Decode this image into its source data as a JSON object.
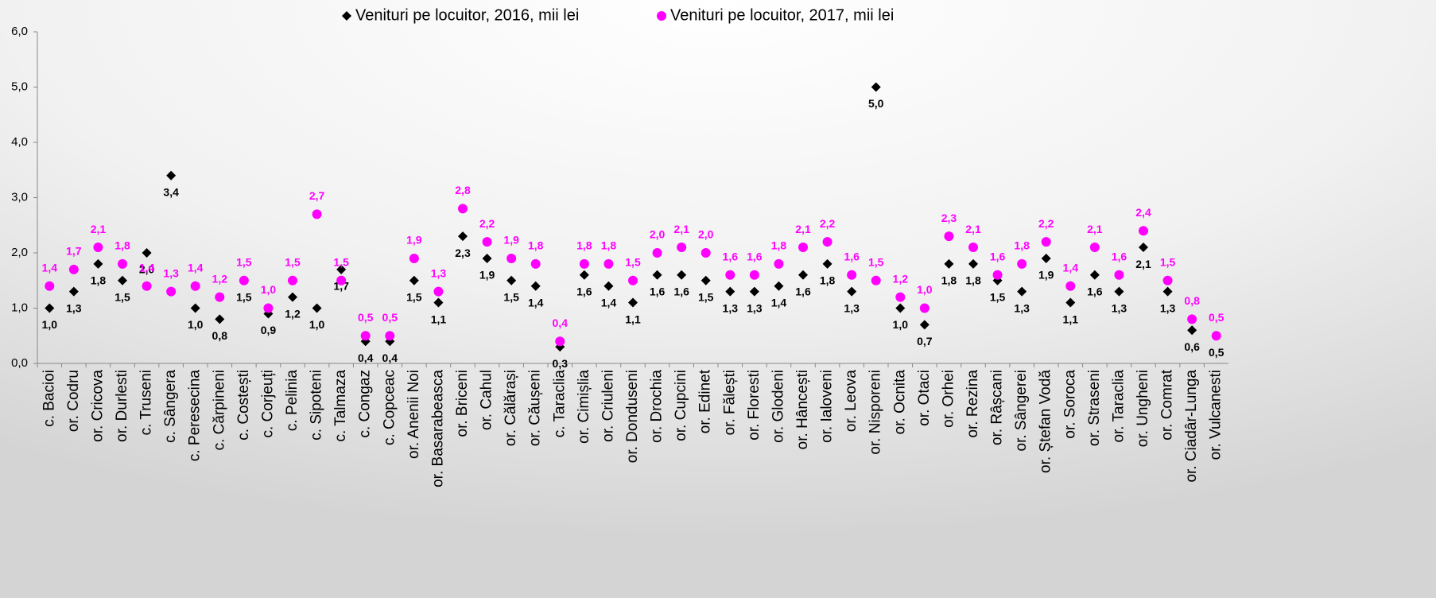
{
  "chart_data": {
    "type": "scatter",
    "categories": [
      "c. Bacioi",
      "or. Codru",
      "or. Cricova",
      "or. Durlesti",
      "c. Truseni",
      "c. Sângera",
      "c. Peresecina",
      "c. Cărpineni",
      "c. Costești",
      "c. Corjeuți",
      "c. Pelinia",
      "c. Sipoteni",
      "c. Talmaza",
      "c. Congaz",
      "c. Copceac",
      "or. Anenii Noi",
      "or. Basarabeasca",
      "or. Briceni",
      "or. Cahul",
      "or. Călărași",
      "or. Căușeni",
      "c. Taraclia",
      "or. Cimișlia",
      "or. Criuleni",
      "or. Donduseni",
      "or. Drochia",
      "or. Cupcini",
      "or. Edinet",
      "or. Fălești",
      "or. Floresti",
      "or. Glodeni",
      "or. Hâncești",
      "or. Ialoveni",
      "or. Leova",
      "or. Nisporeni",
      "or. Ocnita",
      "or. Otaci",
      "or. Orhei",
      "or. Rezina",
      "or. Râșcani",
      "or. Sângerei",
      "or. Ștefan Vodă",
      "or. Soroca",
      "or. Straseni",
      "or. Taraclia",
      "or. Ungheni",
      "or. Comrat",
      "or. Ciadâr-Lunga",
      "or. Vulcanesti"
    ],
    "series": [
      {
        "name": "Venituri pe locuitor, 2016, mii lei",
        "color": "#000000",
        "marker": "diamond",
        "values": [
          1.0,
          1.3,
          1.8,
          1.5,
          2.0,
          3.4,
          1.0,
          0.8,
          1.5,
          0.9,
          1.2,
          1.0,
          1.7,
          0.4,
          0.4,
          1.5,
          1.1,
          2.3,
          1.9,
          1.5,
          1.4,
          0.3,
          1.6,
          1.4,
          1.1,
          1.6,
          1.6,
          1.5,
          1.3,
          1.3,
          1.4,
          1.6,
          1.8,
          1.3,
          5.0,
          1.0,
          0.7,
          1.8,
          1.8,
          1.5,
          1.3,
          1.9,
          1.1,
          1.6,
          1.3,
          2.1,
          1.3,
          0.6,
          0.5
        ],
        "value_labels": [
          "1,0",
          "1,3",
          "1,8",
          "1,5",
          "2,0",
          "3,4",
          "1,0",
          "0,8",
          "1,5",
          "0,9",
          "1,2",
          "1,0",
          "1,7",
          "0,4",
          "0,4",
          "1,5",
          "1,1",
          "2,3",
          "1,9",
          "1,5",
          "1,4",
          "0,3",
          "1,6",
          "1,4",
          "1,1",
          "1,6",
          "1,6",
          "1,5",
          "1,3",
          "1,3",
          "1,4",
          "1,6",
          "1,8",
          "1,3",
          "5,0",
          "1,0",
          "0,7",
          "1,8",
          "1,8",
          "1,5",
          "1,3",
          "1,9",
          "1,1",
          "1,6",
          "1,3",
          "2,1",
          "1,3",
          "0,6",
          "0,5"
        ]
      },
      {
        "name": "Venituri pe locuitor, 2017, mii lei",
        "color": "#ff00ff",
        "marker": "circle",
        "values": [
          1.4,
          1.7,
          2.1,
          1.8,
          1.4,
          1.3,
          1.4,
          1.2,
          1.5,
          1.0,
          1.5,
          2.7,
          1.5,
          0.5,
          0.5,
          1.9,
          1.3,
          2.8,
          2.2,
          1.9,
          1.8,
          0.4,
          1.8,
          1.8,
          1.5,
          2.0,
          2.1,
          2.0,
          1.6,
          1.6,
          1.8,
          2.1,
          2.2,
          1.6,
          1.5,
          1.2,
          1.0,
          2.3,
          2.1,
          1.6,
          1.8,
          2.2,
          1.4,
          2.1,
          1.6,
          2.4,
          1.5,
          0.8,
          0.5
        ],
        "value_labels": [
          "1,4",
          "1,7",
          "2,1",
          "1,8",
          "1,4",
          "1,3",
          "1,4",
          "1,2",
          "1,5",
          "1,0",
          "1,5",
          "2,7",
          "1,5",
          "0,5",
          "0,5",
          "1,9",
          "1,3",
          "2,8",
          "2,2",
          "1,9",
          "1,8",
          "0,4",
          "1,8",
          "1,8",
          "1,5",
          "2,0",
          "2,1",
          "2,0",
          "1,6",
          "1,6",
          "1,8",
          "2,1",
          "2,2",
          "1,6",
          "1,5",
          "1,2",
          "1,0",
          "2,3",
          "2,1",
          "1,6",
          "1,8",
          "2,2",
          "1,4",
          "2,1",
          "1,6",
          "2,4",
          "1,5",
          "0,8",
          "0,5"
        ]
      }
    ],
    "ylim": [
      0,
      6
    ],
    "yticks": [
      {
        "value": 0,
        "label": "0,0"
      },
      {
        "value": 1,
        "label": "1,0"
      },
      {
        "value": 2,
        "label": "2,0"
      },
      {
        "value": 3,
        "label": "3,0"
      },
      {
        "value": 4,
        "label": "4,0"
      },
      {
        "value": 5,
        "label": "5,0"
      },
      {
        "value": 6,
        "label": "6,0"
      }
    ],
    "legend": "top"
  }
}
